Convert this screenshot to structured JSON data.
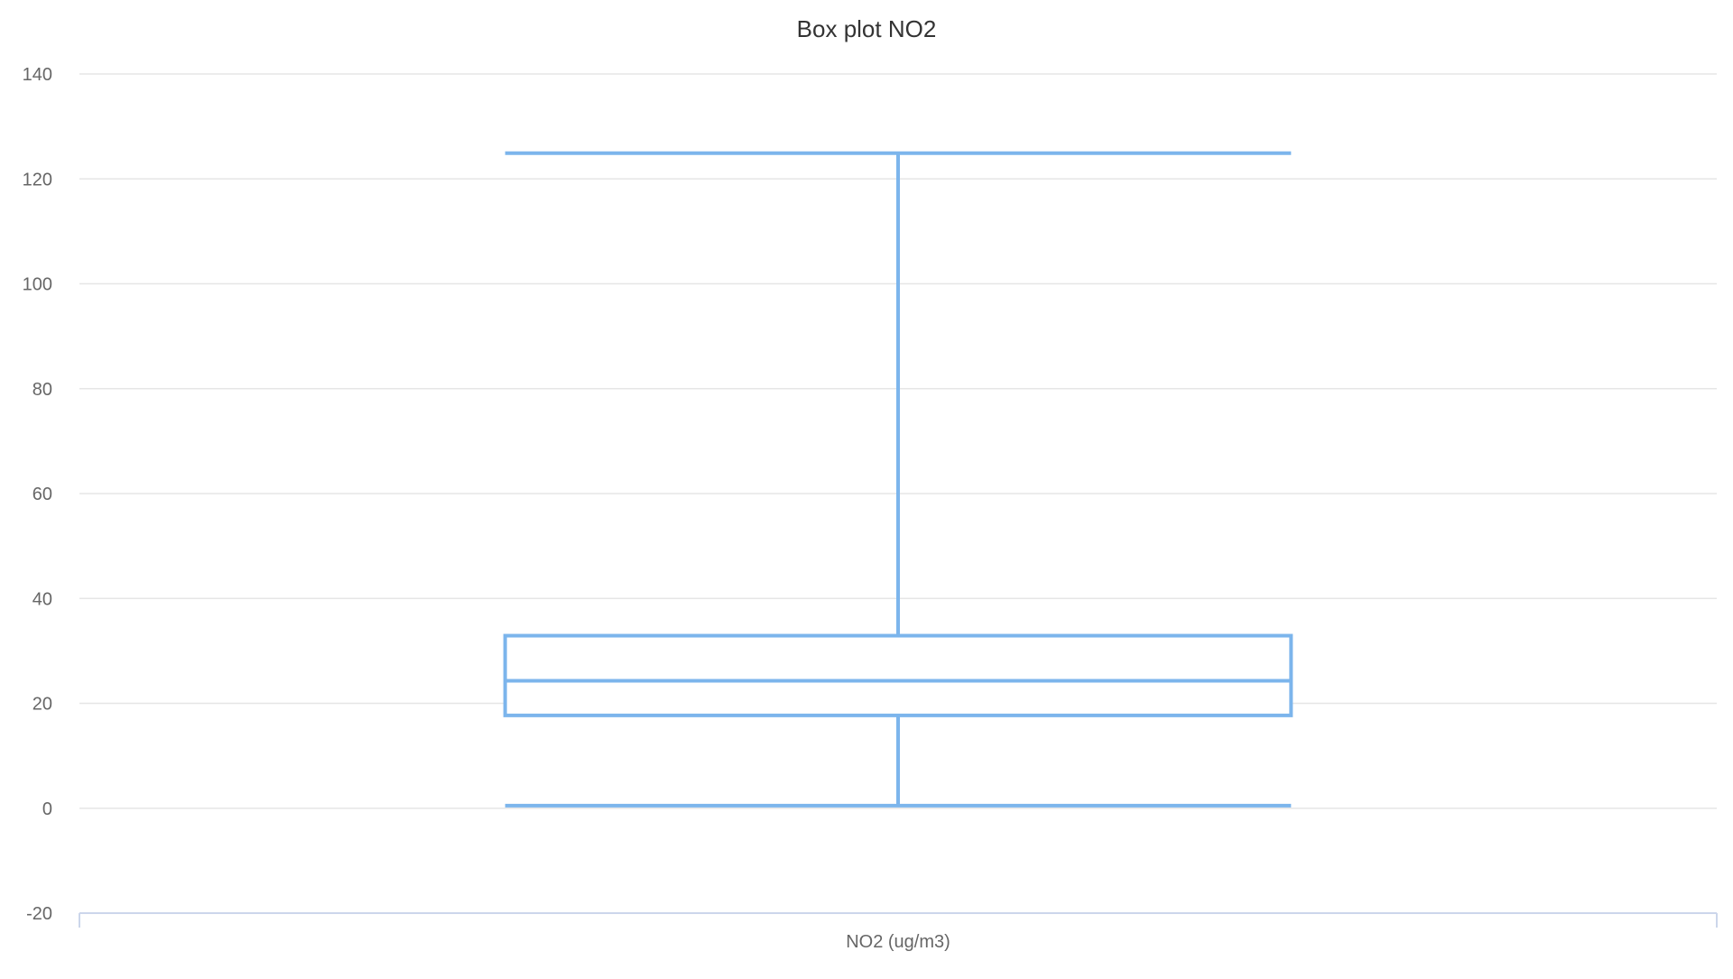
{
  "chart_data": {
    "type": "boxplot",
    "title": "Box plot NO2",
    "xlabel": "",
    "ylabel": "",
    "categories": [
      "NO2 (ug/m3)"
    ],
    "boxes": [
      {
        "category": "NO2 (ug/m3)",
        "min": 0.5,
        "q1": 17.7,
        "median": 24.3,
        "q3": 32.9,
        "max": 124.9
      }
    ],
    "ylim": [
      -20,
      140
    ],
    "yticks": [
      -20,
      0,
      20,
      40,
      60,
      80,
      100,
      120,
      140
    ],
    "grid": true,
    "legend": "none",
    "colors": {
      "box": "#7cb5ec",
      "grid": "#e6e6e6",
      "axis": "#ccd6eb",
      "title": "#333333",
      "label": "#666666"
    }
  }
}
